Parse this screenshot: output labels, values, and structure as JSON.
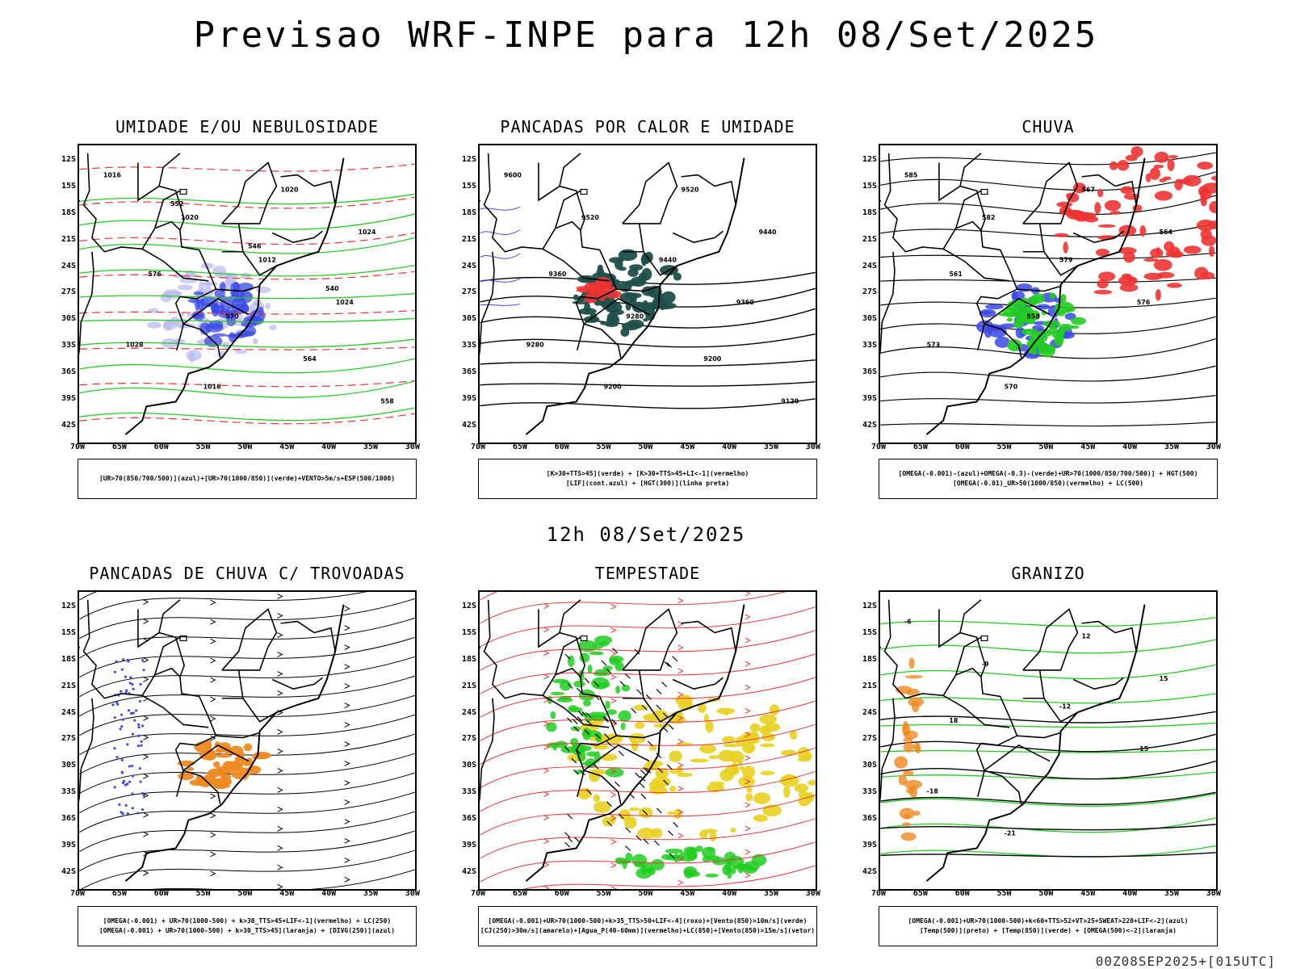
{
  "title": "Previsao WRF-INPE  para 12h 08/Set/2025",
  "mid_title": "12h 08/Set/2025",
  "footer": "00Z08SEP2025+[015UTC]",
  "axes": {
    "lat_labels": [
      "12S",
      "15S",
      "18S",
      "21S",
      "24S",
      "27S",
      "30S",
      "33S",
      "36S",
      "39S",
      "42S"
    ],
    "lon_labels": [
      "70W",
      "65W",
      "60W",
      "55W",
      "50W",
      "45W",
      "40W",
      "35W",
      "30W"
    ]
  },
  "panels": [
    {
      "title": "UMIDADE E/OU NEBULOSIDADE",
      "legend": [
        "[UR>70(850/700/500)](azul)+[UR>70(1000/850)](verde)+VENTO>5m/s+ESP(500/1000)"
      ],
      "contour_labels": [
        "1016",
        "1020",
        "1012",
        "1024",
        "1028",
        "1016",
        "1020",
        "1024",
        "576",
        "570",
        "564",
        "558",
        "552",
        "546",
        "540"
      ],
      "fills": [
        "blue",
        "green"
      ]
    },
    {
      "title": "PANCADAS POR CALOR E UMIDADE",
      "legend": [
        "[K>30+TTS>45](verde) + [K>30+TTS>45+LI<-1](vermelho)",
        "[LIF](cont.azul) + [HGT(300)](linha preta)"
      ],
      "contour_labels": [
        "9600",
        "9520",
        "9440",
        "9360",
        "9280",
        "9200",
        "9520",
        "9440",
        "9360",
        "9280",
        "9200",
        "9120"
      ],
      "fills": [
        "darkteal",
        "red"
      ]
    },
    {
      "title": "CHUVA",
      "legend": [
        "[OMEGA(-0.001)-(azul)+OMEGA(-0.3)-(verde)+UR>70(1000/850/700/500)] + HGT(500)",
        "[OMEGA(-0.01)_UR>50(1000/850)(vermelho) + LC(500)"
      ],
      "contour_labels": [
        "585",
        "582",
        "579",
        "576",
        "573",
        "570",
        "567",
        "564",
        "561",
        "558"
      ],
      "fills": [
        "red",
        "blue",
        "green"
      ]
    },
    {
      "title": "PANCADAS DE CHUVA C/ TROVOADAS",
      "legend": [
        "[OMEGA(-0.001) + UR>70(1000-500) + k>30_TTS>45+LIF<-1](vermelho) + LC(250)",
        "[OMEGA(-0.001) + UR>70(1000-500) + k>30_TTS>45](laranja) + [DIVG(250)](azul)"
      ],
      "contour_labels": [],
      "fills": [
        "orange",
        "blue"
      ]
    },
    {
      "title": "TEMPESTADE",
      "legend": [
        "[OMEGA(-0.001)+UR>70(1000-500)+k>35_TTS>50+LIF<-4](roxo)+[Vento(850)>10m/s](verde)",
        "[CJ(250)>30m/s](amarelo)+[Agua_P(40-60mm)](vermelho)+LC(850)+[Vento(850)>15m/s](vetor)"
      ],
      "contour_labels": [],
      "fills": [
        "yellow",
        "green"
      ]
    },
    {
      "title": "GRANIZO",
      "legend": [
        "[OMEGA(-0.001)+UR>70(1000-500)+k<60+TTS>52+VT>25+SWEAT>220+LIF<-2](azul)",
        "[Temp(500)](preto) + [Temp(850)](verde) + [OMEGA(500)<-2](laranja)"
      ],
      "contour_labels": [
        "-6",
        "-9",
        "-12",
        "-15",
        "-18",
        "-21",
        "12",
        "15",
        "18"
      ],
      "fills": [
        "green",
        "orange"
      ]
    }
  ],
  "chart_data": {
    "type": "map",
    "panels": 6,
    "lat_range": [
      "12S",
      "42S"
    ],
    "lon_range": [
      "70W",
      "30W"
    ],
    "panel_titles": [
      "UMIDADE E/OU NEBULOSIDADE",
      "PANCADAS POR CALOR E UMIDADE",
      "CHUVA",
      "PANCADAS DE CHUVA C/ TROVOADAS",
      "TEMPESTADE",
      "GRANIZO"
    ]
  },
  "colors": {
    "blue": "#3a48e6",
    "lightblue": "#b8b8f0",
    "green": "#22cc22",
    "red": "#ee3333",
    "darkteal": "#1f4f4a",
    "orange": "#ee8a22",
    "yellow": "#e8d020",
    "black": "#000000"
  }
}
